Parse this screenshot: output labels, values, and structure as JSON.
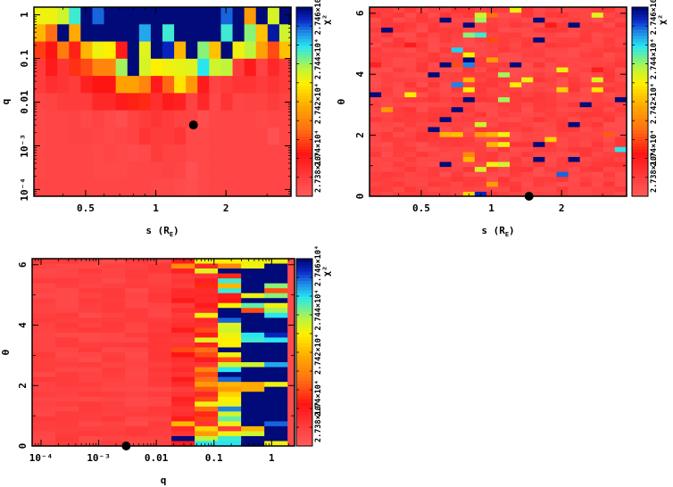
{
  "chart_data": [
    {
      "type": "heatmap",
      "id": "panel-s-q",
      "xlabel": "s (R_E)",
      "ylabel": "q",
      "xscale": "log",
      "yscale": "log",
      "xlim": [
        0.3,
        3.8
      ],
      "ylim": [
        7e-05,
        1.5
      ],
      "xticks": [
        {
          "v": 0.5,
          "label": "0.5"
        },
        {
          "v": 1,
          "label": "1"
        },
        {
          "v": 2,
          "label": "2"
        }
      ],
      "yticks": [
        {
          "v": 0.0001,
          "label": "10⁻⁴"
        },
        {
          "v": 0.001,
          "label": "10⁻³"
        },
        {
          "v": 0.01,
          "label": "0.01"
        },
        {
          "v": 0.1,
          "label": "0.1"
        },
        {
          "v": 1,
          "label": "1"
        }
      ],
      "colorbar": {
        "label": "χ²",
        "ticklabels": [
          "2.738×10⁴",
          "2.74×10⁴",
          "2.742×10⁴",
          "2.744×10⁴",
          "2.746×10⁴"
        ],
        "range": [
          0,
          1
        ]
      },
      "marker": {
        "x": 1.45,
        "y": 0.003
      },
      "nx": 22,
      "grid_note": "values normalized 0 (low χ², red) to 1 (high χ², dark blue); rows listed top (q=1) to bottom",
      "rows": [
        [
          0.62,
          0.62,
          0.66,
          0.78,
          1.0,
          0.9,
          1.0,
          1.0,
          1.0,
          1.0,
          1.0,
          1.0,
          1.0,
          1.0,
          1.0,
          1.0,
          0.9,
          1.0,
          0.45,
          1.0,
          0.65,
          1.0
        ],
        [
          0.5,
          0.35,
          1.0,
          0.48,
          1.0,
          1.0,
          1.0,
          1.0,
          1.0,
          0.85,
          1.0,
          0.78,
          1.0,
          1.0,
          1.0,
          1.0,
          0.78,
          1.0,
          0.72,
          0.52,
          0.97,
          0.66
        ],
        [
          0.28,
          0.22,
          0.38,
          0.24,
          0.5,
          0.62,
          0.6,
          0.2,
          1.0,
          0.64,
          1.0,
          0.95,
          0.5,
          1.0,
          0.72,
          0.52,
          1.0,
          0.62,
          0.68,
          0.46,
          0.3,
          0.52
        ],
        [
          0.1,
          0.2,
          0.12,
          0.26,
          0.3,
          0.4,
          0.4,
          0.7,
          1.0,
          0.65,
          0.6,
          0.62,
          0.63,
          0.64,
          0.8,
          0.66,
          0.68,
          0.1,
          0.2,
          0.08,
          0.16,
          0.1
        ],
        [
          0.1,
          0.14,
          0.12,
          0.1,
          0.18,
          0.22,
          0.22,
          0.46,
          0.46,
          0.4,
          0.2,
          0.34,
          0.58,
          0.44,
          0.2,
          0.08,
          0.1,
          0.12,
          0.12,
          0.1,
          0.12,
          0.1
        ],
        [
          0.07,
          0.08,
          0.1,
          0.1,
          0.1,
          0.16,
          0.16,
          0.2,
          0.24,
          0.25,
          0.14,
          0.2,
          0.18,
          0.08,
          0.16,
          0.06,
          0.12,
          0.07,
          0.08,
          0.08,
          0.1,
          0.08
        ],
        [
          0.06,
          0.07,
          0.07,
          0.08,
          0.06,
          0.08,
          0.06,
          0.04,
          0.08,
          0.1,
          0.12,
          0.1,
          0.08,
          0.08,
          0.04,
          0.07,
          0.07,
          0.07,
          0.07,
          0.06,
          0.07,
          0.07
        ],
        [
          0.06,
          0.07,
          0.07,
          0.08,
          0.08,
          0.07,
          0.06,
          0.07,
          0.08,
          0.12,
          0.1,
          0.1,
          0.12,
          0.06,
          0.06,
          0.07,
          0.07,
          0.07,
          0.07,
          0.07,
          0.03,
          0.07
        ],
        [
          0.06,
          0.07,
          0.07,
          0.07,
          0.07,
          0.06,
          0.07,
          0.06,
          0.05,
          0.06,
          0.1,
          0.08,
          0.08,
          0.06,
          0.06,
          0.07,
          0.07,
          0.07,
          0.07,
          0.07,
          0.07,
          0.07
        ],
        [
          0.06,
          0.07,
          0.07,
          0.07,
          0.07,
          0.06,
          0.06,
          0.06,
          0.07,
          0.07,
          0.07,
          0.08,
          0.07,
          0.03,
          0.06,
          0.07,
          0.07,
          0.07,
          0.07,
          0.07,
          0.07,
          0.07
        ],
        [
          0.07,
          0.07,
          0.07,
          0.07,
          0.07,
          0.07,
          0.07,
          0.07,
          0.07,
          0.07,
          0.06,
          0.06,
          0.05,
          0.04,
          0.06,
          0.07,
          0.07,
          0.07,
          0.07,
          0.07,
          0.07,
          0.07
        ]
      ]
    },
    {
      "type": "heatmap",
      "id": "panel-s-theta",
      "xlabel": "s (R_E)",
      "ylabel": "θ",
      "xscale": "log",
      "yscale": "linear",
      "xlim": [
        0.3,
        3.8
      ],
      "ylim": [
        0,
        6.2
      ],
      "xticks": [
        {
          "v": 0.5,
          "label": "0.5"
        },
        {
          "v": 1,
          "label": "1"
        },
        {
          "v": 2,
          "label": "2"
        }
      ],
      "yticks": [
        {
          "v": 0,
          "label": "0"
        },
        {
          "v": 2,
          "label": "2"
        },
        {
          "v": 4,
          "label": "4"
        },
        {
          "v": 6,
          "label": "6"
        }
      ],
      "colorbar": {
        "label": "χ²",
        "ticklabels": [
          "2.738×10⁴",
          "2.74×10⁴",
          "2.742×10⁴",
          "2.744×10⁴",
          "2.746×10⁴"
        ],
        "range": [
          0,
          1
        ]
      },
      "marker": {
        "x": 1.45,
        "y": 0
      },
      "nx": 22,
      "ny": 38,
      "background_value": 0.08,
      "highlights": [
        {
          "ix": 12,
          "iy": 37,
          "v": 0.62
        },
        {
          "ix": 19,
          "iy": 36,
          "v": 0.64
        },
        {
          "ix": 9,
          "iy": 36,
          "v": 0.66
        },
        {
          "ix": 10,
          "iy": 36,
          "v": 0.35
        },
        {
          "ix": 6,
          "iy": 35,
          "v": 1.0
        },
        {
          "ix": 14,
          "iy": 35,
          "v": 1.0
        },
        {
          "ix": 9,
          "iy": 35,
          "v": 0.7
        },
        {
          "ix": 8,
          "iy": 34,
          "v": 1.0
        },
        {
          "ix": 15,
          "iy": 34,
          "v": 0.2
        },
        {
          "ix": 17,
          "iy": 34,
          "v": 1.0
        },
        {
          "ix": 1,
          "iy": 33,
          "v": 1.0
        },
        {
          "ix": 8,
          "iy": 32,
          "v": 0.72
        },
        {
          "ix": 9,
          "iy": 32,
          "v": 0.78
        },
        {
          "ix": 10,
          "iy": 31,
          "v": 0.3
        },
        {
          "ix": 14,
          "iy": 31,
          "v": 1.0
        },
        {
          "ix": 3,
          "iy": 30,
          "v": 0.2
        },
        {
          "ix": 7,
          "iy": 29,
          "v": 0.82
        },
        {
          "ix": 8,
          "iy": 28,
          "v": 0.6
        },
        {
          "ix": 8,
          "iy": 27,
          "v": 1.0
        },
        {
          "ix": 10,
          "iy": 27,
          "v": 0.45
        },
        {
          "ix": 6,
          "iy": 26,
          "v": 1.0
        },
        {
          "ix": 8,
          "iy": 26,
          "v": 0.88
        },
        {
          "ix": 12,
          "iy": 26,
          "v": 1.0
        },
        {
          "ix": 0,
          "iy": 26,
          "v": 0.18
        },
        {
          "ix": 7,
          "iy": 26,
          "v": 0.3
        },
        {
          "ix": 16,
          "iy": 25,
          "v": 0.62
        },
        {
          "ix": 19,
          "iy": 25,
          "v": 0.2
        },
        {
          "ix": 5,
          "iy": 24,
          "v": 1.0
        },
        {
          "ix": 11,
          "iy": 24,
          "v": 0.7
        },
        {
          "ix": 8,
          "iy": 23,
          "v": 0.5
        },
        {
          "ix": 13,
          "iy": 23,
          "v": 0.62
        },
        {
          "ix": 19,
          "iy": 23,
          "v": 0.64
        },
        {
          "ix": 7,
          "iy": 22,
          "v": 0.88
        },
        {
          "ix": 12,
          "iy": 22,
          "v": 0.6
        },
        {
          "ix": 8,
          "iy": 21,
          "v": 0.6
        },
        {
          "ix": 16,
          "iy": 21,
          "v": 0.55
        },
        {
          "ix": 19,
          "iy": 21,
          "v": 0.58
        },
        {
          "ix": 0,
          "iy": 20,
          "v": 1.0
        },
        {
          "ix": 3,
          "iy": 20,
          "v": 0.6
        },
        {
          "ix": 8,
          "iy": 19,
          "v": 1.0
        },
        {
          "ix": 11,
          "iy": 19,
          "v": 0.7
        },
        {
          "ix": 12,
          "iy": 19,
          "v": 0.1
        },
        {
          "ix": 21,
          "iy": 19,
          "v": 1.0
        },
        {
          "ix": 18,
          "iy": 18,
          "v": 1.0
        },
        {
          "ix": 1,
          "iy": 17,
          "v": 0.45
        },
        {
          "ix": 7,
          "iy": 17,
          "v": 1.0
        },
        {
          "ix": 6,
          "iy": 15,
          "v": 1.0
        },
        {
          "ix": 17,
          "iy": 14,
          "v": 1.0
        },
        {
          "ix": 9,
          "iy": 14,
          "v": 0.66
        },
        {
          "ix": 5,
          "iy": 13,
          "v": 1.0
        },
        {
          "ix": 7,
          "iy": 12,
          "v": 0.52
        },
        {
          "ix": 9,
          "iy": 12,
          "v": 0.45
        },
        {
          "ix": 6,
          "iy": 12,
          "v": 0.5
        },
        {
          "ix": 10,
          "iy": 12,
          "v": 0.5
        },
        {
          "ix": 11,
          "iy": 12,
          "v": 0.62
        },
        {
          "ix": 20,
          "iy": 12,
          "v": 0.32
        },
        {
          "ix": 15,
          "iy": 11,
          "v": 0.55
        },
        {
          "ix": 10,
          "iy": 10,
          "v": 0.5
        },
        {
          "ix": 11,
          "iy": 10,
          "v": 0.62
        },
        {
          "ix": 14,
          "iy": 10,
          "v": 1.0
        },
        {
          "ix": 21,
          "iy": 9,
          "v": 0.8
        },
        {
          "ix": 8,
          "iy": 8,
          "v": 0.4
        },
        {
          "ix": 8,
          "iy": 7,
          "v": 0.5
        },
        {
          "ix": 14,
          "iy": 7,
          "v": 1.0
        },
        {
          "ix": 17,
          "iy": 7,
          "v": 1.0
        },
        {
          "ix": 6,
          "iy": 6,
          "v": 1.0
        },
        {
          "ix": 10,
          "iy": 6,
          "v": 0.62
        },
        {
          "ix": 11,
          "iy": 6,
          "v": 0.66
        },
        {
          "ix": 9,
          "iy": 5,
          "v": 0.65
        },
        {
          "ix": 16,
          "iy": 4,
          "v": 0.9
        },
        {
          "ix": 10,
          "iy": 2,
          "v": 0.45
        },
        {
          "ix": 8,
          "iy": 0,
          "v": 0.55
        },
        {
          "ix": 9,
          "iy": 0,
          "v": 0.95
        }
      ]
    },
    {
      "type": "heatmap",
      "id": "panel-q-theta",
      "xlabel": "q",
      "ylabel": "θ",
      "xscale": "log",
      "yscale": "linear",
      "xlim": [
        7e-05,
        2.5
      ],
      "ylim": [
        0,
        6.2
      ],
      "xticks": [
        {
          "v": 0.0001,
          "label": "10⁻⁴"
        },
        {
          "v": 0.001,
          "label": "10⁻³"
        },
        {
          "v": 0.01,
          "label": "0.01"
        },
        {
          "v": 0.1,
          "label": "0.1"
        },
        {
          "v": 1,
          "label": "1"
        }
      ],
      "yticks": [
        {
          "v": 0,
          "label": "0"
        },
        {
          "v": 2,
          "label": "2"
        },
        {
          "v": 4,
          "label": "4"
        },
        {
          "v": 6,
          "label": "6"
        }
      ],
      "colorbar": {
        "label": "χ²",
        "ticklabels": [
          "2.738×10⁴",
          "2.74×10⁴",
          "2.742×10⁴",
          "2.744×10⁴",
          "2.746×10⁴"
        ],
        "range": [
          0,
          1
        ]
      },
      "marker": {
        "x": 0.003,
        "y": 0
      },
      "nx": 11,
      "ny": 38,
      "columns": [
        {
          "base": 0.08,
          "values": []
        },
        {
          "base": 0.08,
          "values": []
        },
        {
          "base": 0.08,
          "values": []
        },
        {
          "base": 0.08,
          "values": []
        },
        {
          "base": 0.08,
          "values": []
        },
        {
          "base": 0.09,
          "values": []
        },
        {
          "base": 0.12,
          "values": [
            0.2,
            0.42,
            0.18,
            0.1,
            0.12,
            0.1,
            0.15,
            0.15,
            0.2,
            0.1,
            0.14,
            0.1,
            0.12,
            0.14,
            0.2,
            0.12,
            0.1,
            0.12,
            0.3,
            0.22,
            0.14,
            0.12,
            0.15,
            0.12,
            0.2,
            0.15,
            0.1,
            0.12,
            0.18,
            0.16,
            0.12,
            0.14,
            0.2,
            0.5,
            0.16,
            0.12,
            1.0,
            0.2
          ]
        },
        {
          "base": 0.15,
          "values": [
            0.62,
            0.16,
            0.64,
            0.12,
            0.18,
            0.25,
            0.15,
            0.16,
            0.15,
            0.2,
            0.15,
            0.62,
            0.16,
            0.14,
            0.3,
            0.2,
            0.64,
            0.18,
            0.35,
            0.3,
            0.2,
            0.12,
            0.4,
            0.3,
            0.35,
            0.45,
            0.32,
            0.16,
            0.3,
            0.62,
            0.35,
            0.25,
            0.28,
            0.12,
            0.55,
            0.45,
            0.68,
            0.8
          ]
        },
        {
          "base": 0.5,
          "values": [
            0.6,
            0.4,
            1.0,
            0.25,
            0.78,
            0.5,
            0.78,
            0.2,
            0.22,
            0.6,
            1.0,
            1.0,
            0.9,
            0.64,
            0.66,
            0.62,
            0.6,
            0.6,
            1.0,
            0.62,
            0.3,
            0.65,
            0.8,
            1.0,
            0.9,
            0.5,
            0.45,
            0.55,
            0.6,
            0.62,
            0.88,
            0.66,
            0.75,
            0.62,
            0.1,
            0.62,
            0.78,
            0.8
          ]
        },
        {
          "base": 1.0,
          "values": [
            0.62,
            0.62,
            1.0,
            1.0,
            1.0,
            1.0,
            1.0,
            0.62,
            1.0,
            0.75,
            0.3,
            1.0,
            1.0,
            1.0,
            1.0,
            0.8,
            0.78,
            1.0,
            1.0,
            1.0,
            1.0,
            0.66,
            1.0,
            1.0,
            1.0,
            0.48,
            0.48,
            1.0,
            1.0,
            1.0,
            1.0,
            1.0,
            1.0,
            1.0,
            0.5,
            0.66,
            1.0,
            1.0
          ]
        },
        {
          "base": 1.0,
          "values": [
            0.62,
            1.0,
            1.0,
            1.0,
            1.0,
            0.72,
            0.3,
            0.72,
            1.0,
            0.62,
            0.7,
            0.8,
            1.0,
            1.0,
            1.0,
            0.95,
            0.8,
            1.0,
            1.0,
            1.0,
            1.0,
            0.85,
            1.0,
            1.0,
            1.0,
            0.62,
            1.0,
            1.0,
            1.0,
            1.0,
            1.0,
            1.0,
            1.0,
            0.9,
            1.0,
            1.0,
            1.0,
            0.62
          ]
        }
      ]
    }
  ]
}
